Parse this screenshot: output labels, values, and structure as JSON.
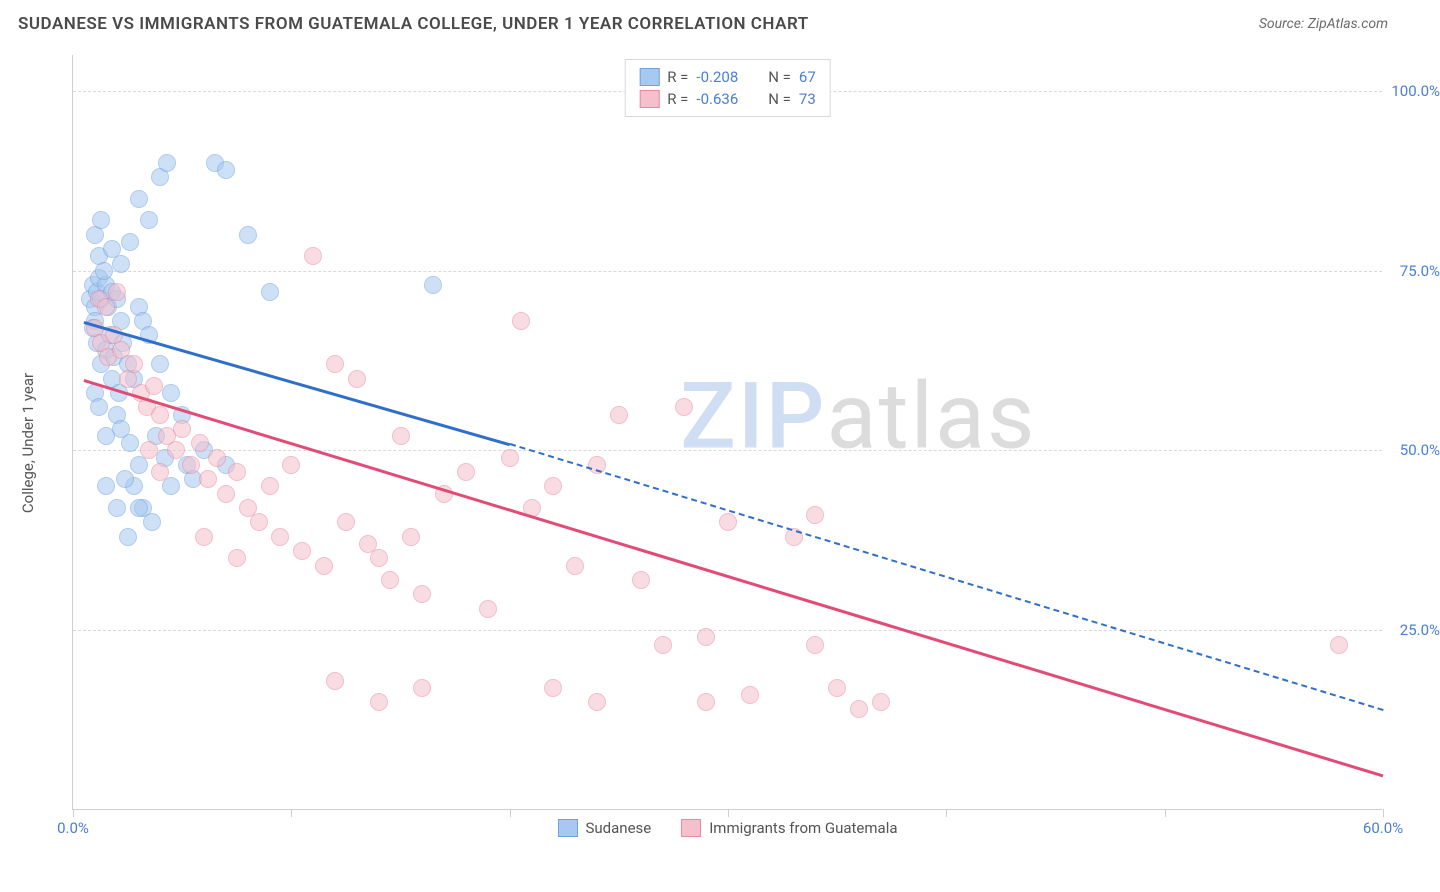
{
  "header": {
    "title": "SUDANESE VS IMMIGRANTS FROM GUATEMALA COLLEGE, UNDER 1 YEAR CORRELATION CHART",
    "source_prefix": "Source: ",
    "source": "ZipAtlas.com"
  },
  "chart": {
    "type": "scatter",
    "ylabel": "College, Under 1 year",
    "xlim": [
      0,
      60
    ],
    "ylim": [
      0,
      105
    ],
    "xtick_positions": [
      0,
      10,
      20,
      30,
      40,
      50,
      60
    ],
    "xtick_labels": [
      "0.0%",
      "",
      "",
      "",
      "",
      "",
      "60.0%"
    ],
    "ytick_positions": [
      25,
      50,
      75,
      100
    ],
    "ytick_labels": [
      "25.0%",
      "50.0%",
      "75.0%",
      "100.0%"
    ],
    "background_color": "#ffffff",
    "grid_color": "#d9d9d9",
    "axis_color": "#cfcfcf",
    "marker_radius": 9,
    "marker_opacity": 0.55,
    "series": [
      {
        "name": "Sudanese",
        "color_fill": "#a7c8f0",
        "color_stroke": "#6fa3dd",
        "line_color": "#2f6fc9",
        "R": "-0.208",
        "N": "67",
        "trend": {
          "x1": 0.5,
          "y1": 68,
          "x2": 20,
          "y2": 51,
          "extend_to_x": 60,
          "extend_to_y": 14
        },
        "points": [
          [
            0.8,
            71
          ],
          [
            0.9,
            73
          ],
          [
            1.0,
            70
          ],
          [
            1.1,
            72
          ],
          [
            1.2,
            74
          ],
          [
            1.0,
            68
          ],
          [
            1.3,
            71
          ],
          [
            1.5,
            73
          ],
          [
            1.2,
            77
          ],
          [
            1.4,
            75
          ],
          [
            0.9,
            67
          ],
          [
            1.1,
            65
          ],
          [
            1.6,
            70
          ],
          [
            1.8,
            72
          ],
          [
            2.0,
            71
          ],
          [
            2.2,
            68
          ],
          [
            1.5,
            64
          ],
          [
            1.3,
            62
          ],
          [
            1.7,
            66
          ],
          [
            1.9,
            63
          ],
          [
            2.3,
            65
          ],
          [
            2.5,
            62
          ],
          [
            2.8,
            60
          ],
          [
            3.0,
            70
          ],
          [
            3.2,
            68
          ],
          [
            3.5,
            66
          ],
          [
            2.0,
            55
          ],
          [
            2.2,
            53
          ],
          [
            2.6,
            51
          ],
          [
            3.0,
            48
          ],
          [
            1.0,
            58
          ],
          [
            1.2,
            56
          ],
          [
            1.5,
            52
          ],
          [
            2.8,
            45
          ],
          [
            3.2,
            42
          ],
          [
            3.6,
            40
          ],
          [
            4.0,
            62
          ],
          [
            4.5,
            58
          ],
          [
            5.0,
            55
          ],
          [
            6.0,
            50
          ],
          [
            7.0,
            48
          ],
          [
            8.0,
            80
          ],
          [
            9.0,
            72
          ],
          [
            2.5,
            38
          ],
          [
            3.0,
            42
          ],
          [
            1.0,
            80
          ],
          [
            1.3,
            82
          ],
          [
            1.8,
            78
          ],
          [
            2.2,
            76
          ],
          [
            2.6,
            79
          ],
          [
            3.0,
            85
          ],
          [
            3.5,
            82
          ],
          [
            4.0,
            88
          ],
          [
            4.3,
            90
          ],
          [
            6.5,
            90
          ],
          [
            7.0,
            89
          ],
          [
            16.5,
            73
          ],
          [
            1.5,
            45
          ],
          [
            2.0,
            42
          ],
          [
            2.4,
            46
          ],
          [
            4.5,
            45
          ],
          [
            5.2,
            48
          ],
          [
            1.8,
            60
          ],
          [
            2.1,
            58
          ],
          [
            3.8,
            52
          ],
          [
            4.2,
            49
          ],
          [
            5.5,
            46
          ]
        ]
      },
      {
        "name": "Immigrants from Guatemala",
        "color_fill": "#f4c0cc",
        "color_stroke": "#e98aa3",
        "line_color": "#e34b77",
        "R": "-0.636",
        "N": "73",
        "trend": {
          "x1": 0.5,
          "y1": 60,
          "x2": 60,
          "y2": 5
        },
        "points": [
          [
            1.0,
            67
          ],
          [
            1.3,
            65
          ],
          [
            1.6,
            63
          ],
          [
            1.9,
            66
          ],
          [
            2.2,
            64
          ],
          [
            2.5,
            60
          ],
          [
            2.8,
            62
          ],
          [
            3.1,
            58
          ],
          [
            3.4,
            56
          ],
          [
            3.7,
            59
          ],
          [
            4.0,
            55
          ],
          [
            4.3,
            52
          ],
          [
            4.7,
            50
          ],
          [
            5.0,
            53
          ],
          [
            5.4,
            48
          ],
          [
            5.8,
            51
          ],
          [
            6.2,
            46
          ],
          [
            6.6,
            49
          ],
          [
            7.0,
            44
          ],
          [
            7.5,
            47
          ],
          [
            8.0,
            42
          ],
          [
            8.5,
            40
          ],
          [
            9.0,
            45
          ],
          [
            9.5,
            38
          ],
          [
            10.0,
            48
          ],
          [
            10.5,
            36
          ],
          [
            11.0,
            77
          ],
          [
            11.5,
            34
          ],
          [
            12.0,
            62
          ],
          [
            12.5,
            40
          ],
          [
            13.0,
            60
          ],
          [
            13.5,
            37
          ],
          [
            14.0,
            35
          ],
          [
            14.5,
            32
          ],
          [
            15.0,
            52
          ],
          [
            15.5,
            38
          ],
          [
            16.0,
            30
          ],
          [
            17.0,
            44
          ],
          [
            18.0,
            47
          ],
          [
            19.0,
            28
          ],
          [
            20.0,
            49
          ],
          [
            20.5,
            68
          ],
          [
            21.0,
            42
          ],
          [
            22.0,
            45
          ],
          [
            23.0,
            34
          ],
          [
            24.0,
            48
          ],
          [
            25.0,
            55
          ],
          [
            26.0,
            32
          ],
          [
            27.0,
            23
          ],
          [
            28.0,
            56
          ],
          [
            29.0,
            15
          ],
          [
            30.0,
            40
          ],
          [
            31.0,
            16
          ],
          [
            33.0,
            38
          ],
          [
            34.0,
            41
          ],
          [
            35.0,
            17
          ],
          [
            36.0,
            14
          ],
          [
            37.0,
            15
          ],
          [
            14.0,
            15
          ],
          [
            16.0,
            17
          ],
          [
            22.0,
            17
          ],
          [
            24.0,
            15
          ],
          [
            29.0,
            24
          ],
          [
            34.0,
            23
          ],
          [
            58.0,
            23
          ],
          [
            12.0,
            18
          ],
          [
            1.2,
            71
          ],
          [
            1.5,
            70
          ],
          [
            2.0,
            72
          ],
          [
            3.5,
            50
          ],
          [
            4.0,
            47
          ],
          [
            6.0,
            38
          ],
          [
            7.5,
            35
          ]
        ]
      }
    ],
    "legend_bottom": [
      {
        "label": "Sudanese",
        "fill": "#a7c8f0",
        "stroke": "#6fa3dd"
      },
      {
        "label": "Immigrants from Guatemala",
        "fill": "#f4c0cc",
        "stroke": "#e98aa3"
      }
    ]
  },
  "watermark": {
    "part1": "ZIP",
    "part2": "atlas"
  }
}
